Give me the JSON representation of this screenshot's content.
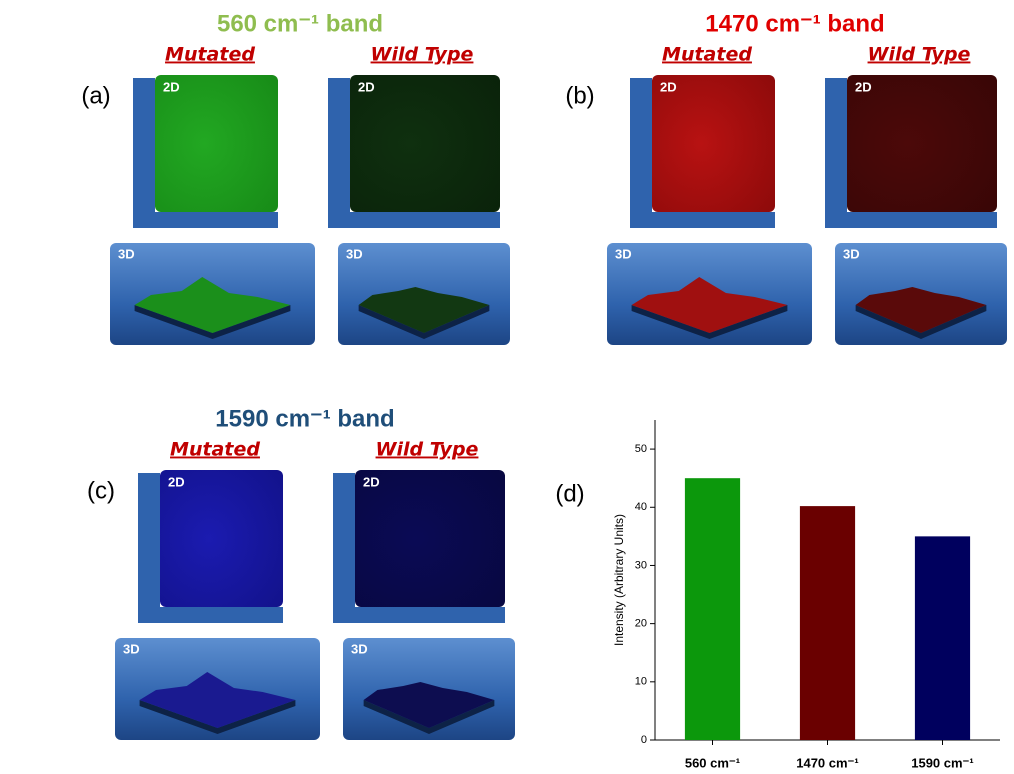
{
  "panels": [
    {
      "label": "(a)",
      "title": "560 cm⁻¹ band",
      "samples": [
        {
          "name": "Mutated",
          "view_2d": "2D",
          "view_3d": "3D"
        },
        {
          "name": "Wild Type",
          "view_2d": "2D",
          "view_3d": "3D"
        }
      ]
    },
    {
      "label": "(b)",
      "title": "1470 cm⁻¹ band",
      "samples": [
        {
          "name": "Mutated",
          "view_2d": "2D",
          "view_3d": "3D"
        },
        {
          "name": "Wild Type",
          "view_2d": "2D",
          "view_3d": "3D"
        }
      ]
    },
    {
      "label": "(c)",
      "title": "1590 cm⁻¹ band",
      "samples": [
        {
          "name": "Mutated",
          "view_2d": "2D",
          "view_3d": "3D"
        },
        {
          "name": "Wild Type",
          "view_2d": "2D",
          "view_3d": "3D"
        }
      ]
    }
  ],
  "chart_data": {
    "type": "bar",
    "label": "(d)",
    "ylabel": "Intensity (Arbitrary Units)",
    "categories": [
      "560 cm⁻¹",
      "1470 cm⁻¹",
      "1590 cm⁻¹"
    ],
    "values": [
      45,
      40.2,
      35
    ],
    "colors": [
      "#0c980c",
      "#6a0000",
      "#00005e"
    ],
    "ylim": [
      0,
      55
    ],
    "yticks": [
      0,
      10,
      20,
      30,
      40,
      50
    ]
  }
}
